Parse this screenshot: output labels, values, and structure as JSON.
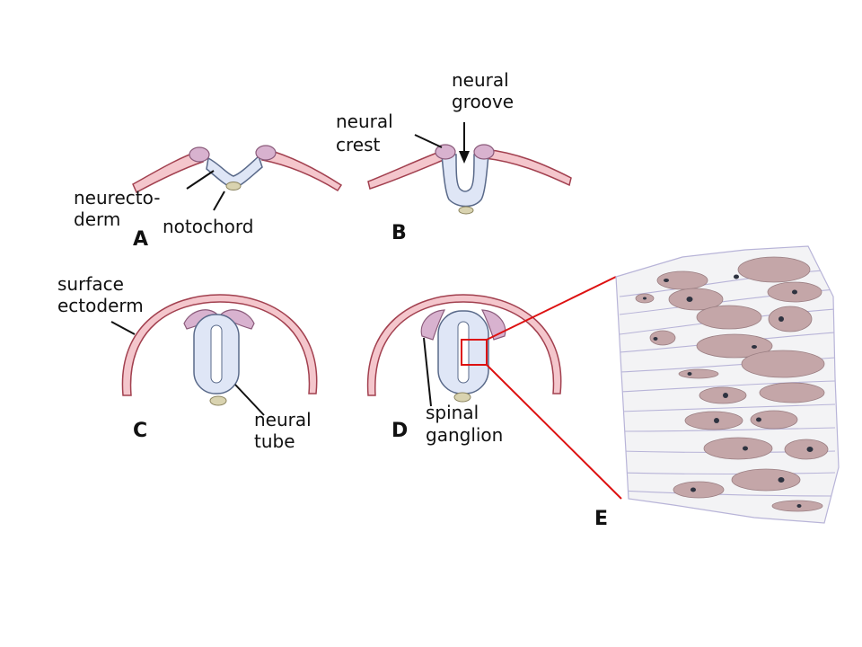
{
  "panels": {
    "a": "A",
    "b": "B",
    "c": "C",
    "d": "D",
    "e": "E"
  },
  "labels": {
    "neurectoderm_line1": "neurecto-",
    "neurectoderm_line2": "derm",
    "notochord": "notochord",
    "neural_crest_line1": "neural",
    "neural_crest_line2": "crest",
    "neural_groove_line1": "neural",
    "neural_groove_line2": "groove",
    "surface_ectoderm_line1": "surface",
    "surface_ectoderm_line2": "ectoderm",
    "neural_tube_line1": "neural",
    "neural_tube_line2": "tube",
    "spinal_ganglion_line1": "spinal",
    "spinal_ganglion_line2": "ganglion"
  },
  "colors": {
    "ectoderm_fill": "#f4c6cc",
    "ectoderm_stroke": "#a2404f",
    "neural_fill": "#dfe6f6",
    "neural_stroke": "#5a6a8a",
    "crest_fill": "#d8b2cf",
    "crest_stroke": "#8a5a7a",
    "notochord_fill": "#d9d3b0",
    "notochord_stroke": "#8c8560",
    "zoom_line": "#dd1111",
    "nucleus_fill": "#c4a6a8",
    "nucleolus": "#2e3340",
    "tissue_bg": "#f3f3f5"
  }
}
